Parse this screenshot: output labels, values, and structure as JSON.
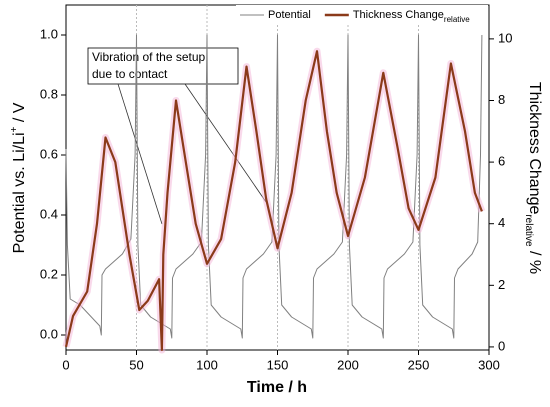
{
  "chart_data": {
    "type": "line",
    "xlabel": "Time  /  h",
    "ylabel": [
      "Potential vs. Li/Li",
      "+",
      " / V"
    ],
    "y2label": [
      "Thickness Change",
      "relative",
      "  /  %"
    ],
    "annotation": [
      "Vibration of the setup",
      "due to contact"
    ],
    "xlim": [
      0,
      300
    ],
    "xticks": [
      0,
      50,
      100,
      150,
      200,
      250,
      300
    ],
    "ylim": [
      -0.05,
      1.1
    ],
    "yticks": [
      {
        "value": 0,
        "label": "0.0"
      },
      0.2,
      0.4,
      0.6,
      0.8,
      {
        "value": 1,
        "label": "1.0"
      }
    ],
    "y2lim": [
      -0.1,
      11.1
    ],
    "y2ticks": [
      0,
      2,
      4,
      6,
      8,
      10
    ],
    "xgrid": true,
    "legend": "top-right",
    "series": [
      {
        "name": "Potential",
        "color": "#808080",
        "x": [
          0,
          1,
          3,
          10,
          24,
          25,
          25.5,
          28,
          40,
          46,
          49,
          50,
          51,
          53,
          60,
          74,
          75,
          75.5,
          78,
          90,
          96,
          99,
          100,
          101,
          103,
          110,
          124,
          125,
          125.5,
          128,
          140,
          146,
          149,
          150,
          151,
          153,
          160,
          174,
          175,
          175.5,
          178,
          190,
          196,
          199,
          200,
          201,
          203,
          210,
          224,
          225,
          225.5,
          228,
          240,
          246,
          249,
          250,
          251,
          253,
          260,
          274,
          275,
          275.5,
          278,
          288,
          292,
          294,
          295
        ],
        "values": [
          0.62,
          0.3,
          0.12,
          0.1,
          0.03,
          0.0,
          0.2,
          0.22,
          0.27,
          0.32,
          0.6,
          1.0,
          0.3,
          0.1,
          0.06,
          0.02,
          -0.01,
          0.19,
          0.22,
          0.27,
          0.31,
          0.6,
          1.0,
          0.3,
          0.1,
          0.06,
          0.02,
          -0.01,
          0.19,
          0.22,
          0.27,
          0.31,
          0.6,
          1.0,
          0.3,
          0.1,
          0.06,
          0.02,
          -0.01,
          0.19,
          0.22,
          0.27,
          0.31,
          0.6,
          1.0,
          0.3,
          0.1,
          0.06,
          0.02,
          -0.01,
          0.19,
          0.22,
          0.27,
          0.31,
          0.6,
          1.0,
          0.3,
          0.1,
          0.06,
          0.02,
          -0.01,
          0.19,
          0.22,
          0.27,
          0.31,
          0.6,
          1.0
        ]
      },
      {
        "name": "Thickness Change",
        "name_sub": "relative",
        "color": "#8b3a1a",
        "axis": "y2",
        "x": [
          0,
          5,
          15,
          22,
          28,
          35,
          45,
          52,
          58,
          66,
          68,
          69,
          72,
          78,
          85,
          92,
          100,
          110,
          120,
          128,
          135,
          142,
          150,
          160,
          170,
          178,
          185,
          192,
          200,
          212,
          225,
          235,
          243,
          250,
          262,
          273,
          283,
          290,
          295
        ],
        "values": [
          0,
          1,
          1.8,
          4,
          6.8,
          6,
          3,
          1.2,
          1.5,
          2.2,
          -0.1,
          3,
          5,
          8,
          6,
          4,
          2.7,
          3.5,
          6,
          9.1,
          7,
          4.8,
          3.2,
          5,
          8,
          9.6,
          7,
          5,
          3.6,
          5.5,
          8.9,
          6.5,
          4.5,
          3.8,
          5.5,
          9.2,
          7,
          5,
          4.4
        ]
      }
    ]
  }
}
